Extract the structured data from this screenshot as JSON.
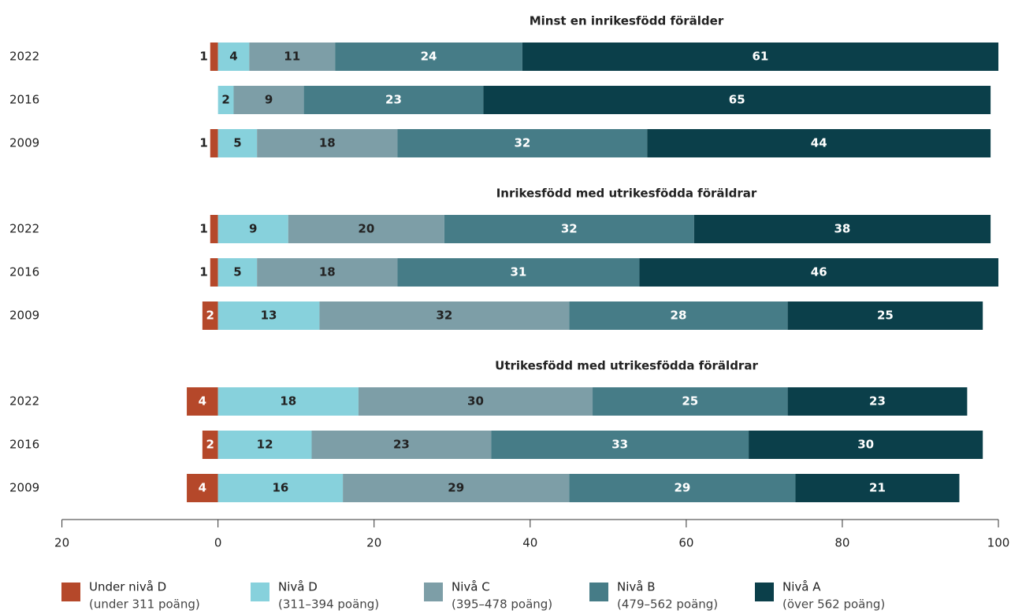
{
  "chart_data": {
    "type": "bar",
    "orientation": "horizontal",
    "stacked": true,
    "group_titles": [
      "Minst en inrikesfödd förälder",
      "Inrikesfödd med utrikesfödda föräldrar",
      "Utrikesfödd med utrikesfödda föräldrar"
    ],
    "categories": [
      "2022",
      "2016",
      "2009",
      "2022",
      "2016",
      "2009",
      "2022",
      "2016",
      "2009"
    ],
    "series": [
      {
        "name": "Under nivå D",
        "range": "(under 311 poäng)",
        "color": "#b5482a",
        "values": [
          -1,
          null,
          -1,
          -1,
          -1,
          -2,
          -4,
          -2,
          -4
        ],
        "value_labels": [
          "1",
          null,
          "1",
          "1",
          "1",
          "2",
          "4",
          "2",
          "4"
        ]
      },
      {
        "name": "Nivå D",
        "range": "(311–394 poäng)",
        "color": "#87d1dc",
        "values": [
          4,
          2,
          5,
          9,
          5,
          13,
          18,
          12,
          16
        ]
      },
      {
        "name": "Nivå C",
        "range": "(395–478 poäng)",
        "color": "#7d9ea7",
        "values": [
          11,
          9,
          18,
          20,
          18,
          32,
          30,
          23,
          29
        ]
      },
      {
        "name": "Nivå B",
        "range": "(479–562 poäng)",
        "color": "#467c87",
        "values": [
          24,
          23,
          32,
          32,
          31,
          28,
          25,
          33,
          29
        ]
      },
      {
        "name": "Nivå A",
        "range": "(över 562 poäng)",
        "color": "#0b3f4a",
        "values": [
          61,
          65,
          44,
          38,
          46,
          25,
          23,
          30,
          21
        ]
      }
    ],
    "xlim": [
      -20,
      100
    ],
    "xticks": [
      {
        "value": -20,
        "label": "20"
      },
      0,
      20,
      40,
      60,
      80,
      100
    ],
    "legend": "bottom"
  }
}
